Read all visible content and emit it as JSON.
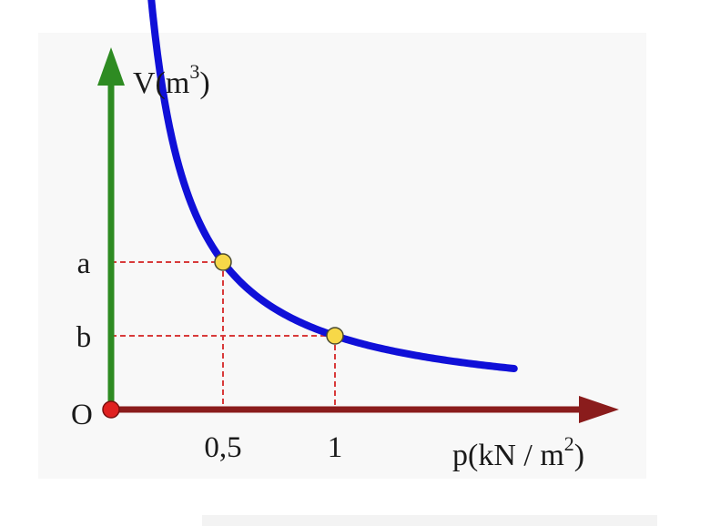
{
  "chart_data": {
    "type": "line",
    "title": "",
    "xlabel": {
      "base": "p(kN / m",
      "exp": "2",
      "close": ")"
    },
    "ylabel": {
      "base": "V(m",
      "exp": "3",
      "close": ")"
    },
    "origin_label": "O",
    "x_ticks": [
      {
        "value": 0.5,
        "label": "0,5"
      },
      {
        "value": 1,
        "label": "1"
      }
    ],
    "y_ticks": [
      {
        "value": 1.0,
        "label": "a"
      },
      {
        "value": 0.5,
        "label": "b"
      }
    ],
    "xlim": [
      0,
      2.3
    ],
    "ylim": [
      0,
      2.9
    ],
    "curve": {
      "relation": "V = 0.5 / p",
      "x_range": [
        0.09,
        1.8
      ]
    },
    "points": [
      {
        "x": 0.5,
        "y": 1.0,
        "label": "a"
      },
      {
        "x": 1,
        "y": 0.5,
        "label": "b"
      }
    ],
    "grid": false,
    "legend": "none",
    "colors": {
      "curve": "#1010d8",
      "x_axis": "#8a1c1c",
      "y_axis": "#2e8b22",
      "guides": "#d83a3a",
      "points": "#f7d848",
      "origin": "#e02020"
    }
  }
}
